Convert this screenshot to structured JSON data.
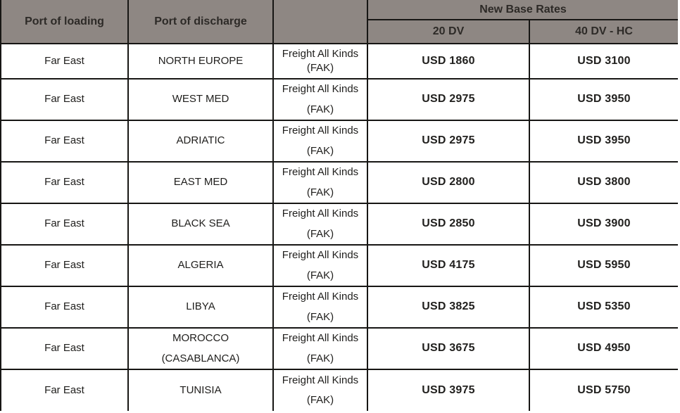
{
  "colors": {
    "header_bg": "#8e8783",
    "header_text": "#2d2a27",
    "body_text": "#21201e",
    "border": "#171614"
  },
  "table": {
    "headers": {
      "port_of_loading": "Port of loading",
      "port_of_discharge": "Port of discharge",
      "blank": "",
      "new_base_rates": "New Base Rates",
      "size_20dv": "20 DV",
      "size_40dv": "40 DV - HC"
    },
    "rows": [
      {
        "loading": "Far East",
        "discharge": "NORTH EUROPE",
        "rate_type": "Freight All Kinds (FAK)",
        "rate_20dv": "USD 1860",
        "rate_40dv": "USD 3100"
      },
      {
        "loading": "Far East",
        "discharge": "WEST MED",
        "rate_type": "Freight All Kinds (FAK)",
        "rate_20dv": "USD 2975",
        "rate_40dv": "USD 3950"
      },
      {
        "loading": "Far East",
        "discharge": "ADRIATIC",
        "rate_type": "Freight All Kinds (FAK)",
        "rate_20dv": "USD 2975",
        "rate_40dv": "USD 3950"
      },
      {
        "loading": "Far East",
        "discharge": "EAST MED",
        "rate_type": "Freight All Kinds (FAK)",
        "rate_20dv": "USD 2800",
        "rate_40dv": "USD 3800"
      },
      {
        "loading": "Far East",
        "discharge": "BLACK SEA",
        "rate_type": "Freight All Kinds (FAK)",
        "rate_20dv": "USD 2850",
        "rate_40dv": "USD 3900"
      },
      {
        "loading": "Far East",
        "discharge": "ALGERIA",
        "rate_type": "Freight All Kinds (FAK)",
        "rate_20dv": "USD 4175",
        "rate_40dv": "USD 5950"
      },
      {
        "loading": "Far East",
        "discharge": "LIBYA",
        "rate_type": "Freight All Kinds (FAK)",
        "rate_20dv": "USD 3825",
        "rate_40dv": "USD 5350"
      },
      {
        "loading": "Far East",
        "discharge": "MOROCCO (CASABLANCA)",
        "rate_type": "Freight All Kinds (FAK)",
        "rate_20dv": "USD 3675",
        "rate_40dv": "USD 4950"
      },
      {
        "loading": "Far East",
        "discharge": "TUNISIA",
        "rate_type": "Freight All Kinds (FAK)",
        "rate_20dv": "USD 3975",
        "rate_40dv": "USD 5750"
      }
    ]
  }
}
